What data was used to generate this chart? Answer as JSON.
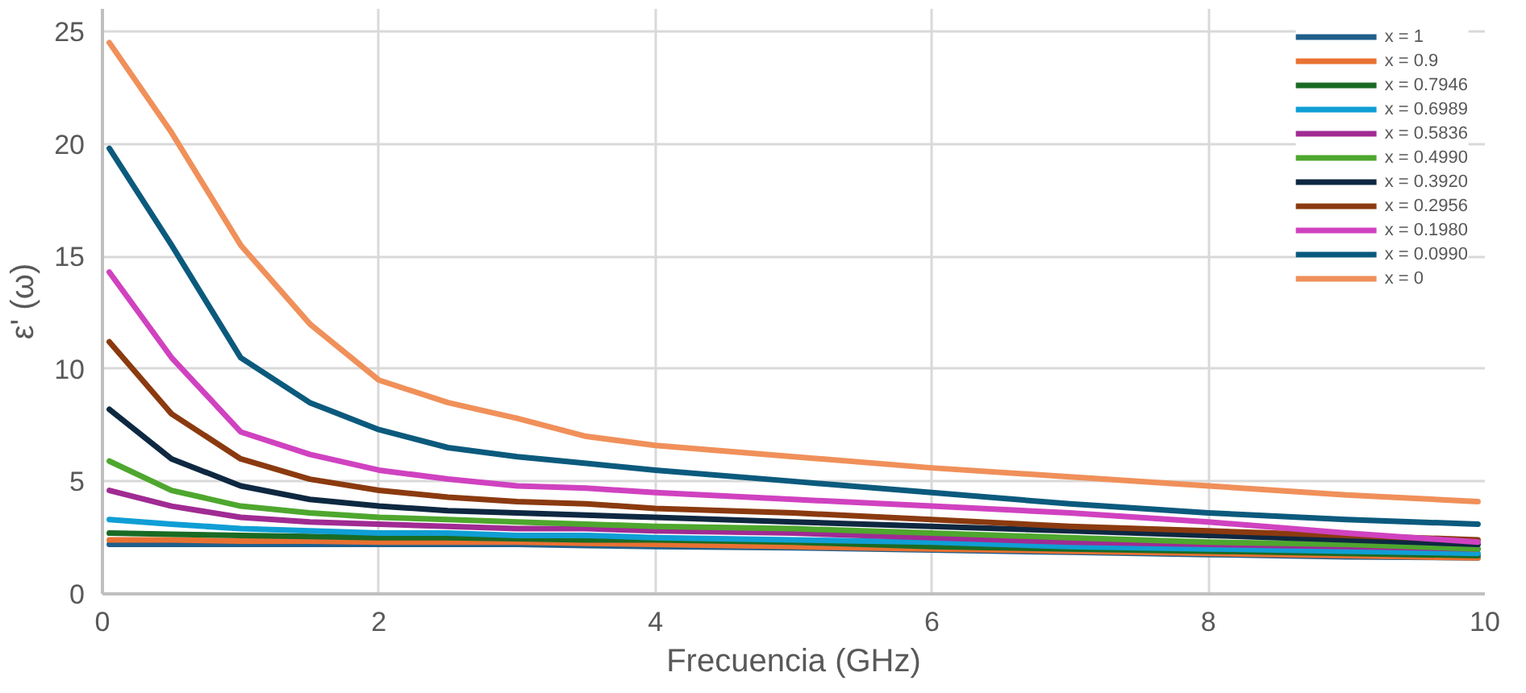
{
  "chart_data": {
    "type": "line",
    "xlabel": "Frecuencia (GHz)",
    "ylabel": "ε' (ω)",
    "x": [
      0.05,
      0.5,
      1,
      1.5,
      2,
      2.5,
      3,
      3.5,
      4,
      5,
      6,
      7,
      8,
      9,
      9.95
    ],
    "xlim": [
      0,
      10
    ],
    "xticks": [
      0,
      2,
      4,
      6,
      8,
      10
    ],
    "ylim": [
      0,
      26
    ],
    "yticks": [
      0,
      5,
      10,
      15,
      20,
      25
    ],
    "grid": true,
    "legend": "top right",
    "marker": "none",
    "line_style": "solid",
    "series": [
      {
        "name": "x = 1",
        "color": "#1f5f8b",
        "values": [
          2.2,
          2.2,
          2.2,
          2.2,
          2.2,
          2.2,
          2.2,
          2.15,
          2.1,
          2.05,
          1.95,
          1.85,
          1.75,
          1.65,
          1.6
        ]
      },
      {
        "name": "x = 0.9",
        "color": "#e97132",
        "values": [
          2.4,
          2.4,
          2.35,
          2.35,
          2.3,
          2.3,
          2.3,
          2.25,
          2.2,
          2.1,
          2.0,
          1.9,
          1.8,
          1.7,
          1.6
        ]
      },
      {
        "name": "x = 0.7946",
        "color": "#196b24",
        "values": [
          2.7,
          2.65,
          2.6,
          2.55,
          2.5,
          2.5,
          2.45,
          2.4,
          2.4,
          2.3,
          2.1,
          2.0,
          1.9,
          1.8,
          1.7
        ]
      },
      {
        "name": "x = 0.6989",
        "color": "#0f9ed5",
        "values": [
          3.3,
          3.1,
          2.9,
          2.8,
          2.7,
          2.7,
          2.6,
          2.6,
          2.5,
          2.4,
          2.3,
          2.1,
          2.0,
          1.9,
          1.8
        ]
      },
      {
        "name": "x = 0.5836",
        "color": "#a02b93",
        "values": [
          4.6,
          3.9,
          3.4,
          3.2,
          3.1,
          3.0,
          2.9,
          2.9,
          2.8,
          2.7,
          2.5,
          2.3,
          2.2,
          2.1,
          2.0
        ]
      },
      {
        "name": "x = 0.4990",
        "color": "#4ea72e",
        "values": [
          5.9,
          4.6,
          3.9,
          3.6,
          3.4,
          3.3,
          3.2,
          3.1,
          3.0,
          2.9,
          2.7,
          2.5,
          2.3,
          2.2,
          2.0
        ]
      },
      {
        "name": "x = 0.3920",
        "color": "#0e2841",
        "values": [
          8.2,
          6.0,
          4.8,
          4.2,
          3.9,
          3.7,
          3.6,
          3.5,
          3.4,
          3.2,
          3.0,
          2.8,
          2.6,
          2.4,
          2.2
        ]
      },
      {
        "name": "x = 0.2956",
        "color": "#8b3a0f",
        "values": [
          11.2,
          8.0,
          6.0,
          5.1,
          4.6,
          4.3,
          4.1,
          4.0,
          3.8,
          3.6,
          3.3,
          3.0,
          2.8,
          2.6,
          2.4
        ]
      },
      {
        "name": "x = 0.1980",
        "color": "#d042c0",
        "values": [
          14.3,
          10.5,
          7.2,
          6.2,
          5.5,
          5.1,
          4.8,
          4.7,
          4.5,
          4.2,
          3.9,
          3.6,
          3.2,
          2.7,
          2.3
        ]
      },
      {
        "name": "x = 0.0990",
        "color": "#0b5a7d",
        "values": [
          19.8,
          15.5,
          10.5,
          8.5,
          7.3,
          6.5,
          6.1,
          5.8,
          5.5,
          5.0,
          4.5,
          4.0,
          3.6,
          3.3,
          3.1
        ]
      },
      {
        "name": "x = 0",
        "color": "#f0905a",
        "values": [
          24.5,
          20.5,
          15.5,
          12.0,
          9.5,
          8.5,
          7.8,
          7.0,
          6.6,
          6.1,
          5.6,
          5.2,
          4.8,
          4.4,
          4.1
        ]
      }
    ]
  }
}
